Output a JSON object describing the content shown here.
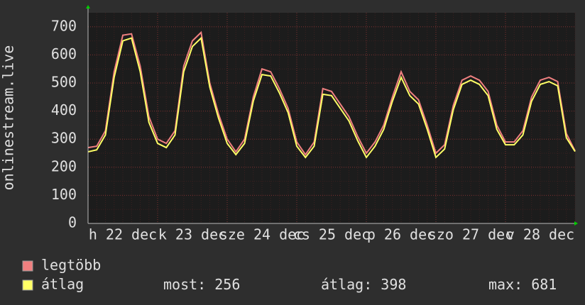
{
  "chart_data": {
    "type": "line",
    "ylabel": "onlinestream.live",
    "x": [
      0,
      3,
      6,
      9,
      12,
      15,
      18,
      21,
      24,
      27,
      30,
      33,
      36,
      39,
      42,
      45,
      48,
      51,
      54,
      57,
      60,
      63,
      66,
      69,
      72,
      75,
      78,
      81,
      84,
      87,
      90,
      93,
      96,
      99,
      102,
      105,
      108,
      111,
      114,
      117,
      120,
      123,
      126,
      129,
      132,
      135,
      138,
      141,
      144,
      147,
      150,
      153,
      156,
      159,
      162,
      165,
      168
    ],
    "series": [
      {
        "name": "legtöbb",
        "color": "#f08080",
        "values": [
          270,
          275,
          330,
          540,
          670,
          675,
          560,
          380,
          300,
          285,
          330,
          560,
          650,
          680,
          500,
          390,
          300,
          255,
          300,
          450,
          550,
          540,
          480,
          410,
          290,
          245,
          290,
          480,
          470,
          425,
          380,
          310,
          250,
          290,
          350,
          450,
          540,
          470,
          440,
          350,
          250,
          280,
          420,
          510,
          525,
          510,
          470,
          350,
          290,
          290,
          330,
          450,
          510,
          520,
          505,
          320,
          258
        ]
      },
      {
        "name": "átlag",
        "color": "#ffff66",
        "values": [
          255,
          262,
          315,
          520,
          650,
          660,
          540,
          360,
          285,
          270,
          315,
          540,
          630,
          660,
          485,
          375,
          285,
          245,
          285,
          435,
          530,
          525,
          465,
          395,
          275,
          235,
          275,
          460,
          455,
          410,
          365,
          295,
          235,
          275,
          335,
          435,
          520,
          455,
          425,
          335,
          235,
          265,
          405,
          495,
          510,
          495,
          455,
          335,
          280,
          280,
          315,
          435,
          495,
          505,
          490,
          305,
          256
        ]
      }
    ],
    "xlim": [
      0,
      168
    ],
    "xticks": [
      {
        "value": 12,
        "label": "h 22 dec"
      },
      {
        "value": 36,
        "label": "k 23 dec"
      },
      {
        "value": 60,
        "label": "sze 24 dec"
      },
      {
        "value": 84,
        "label": "cs 25 dec"
      },
      {
        "value": 108,
        "label": "p 26 dec"
      },
      {
        "value": 132,
        "label": "szo 27 dec"
      },
      {
        "value": 156,
        "label": "v 28 dec"
      }
    ],
    "ylim": [
      0,
      750
    ],
    "yticks": [
      0,
      100,
      200,
      300,
      400,
      500,
      600,
      700
    ],
    "grid": true,
    "stats": [
      {
        "label": "most:",
        "value": 256
      },
      {
        "label": "átlag:",
        "value": 398
      },
      {
        "label": "max:",
        "value": 681
      }
    ]
  }
}
